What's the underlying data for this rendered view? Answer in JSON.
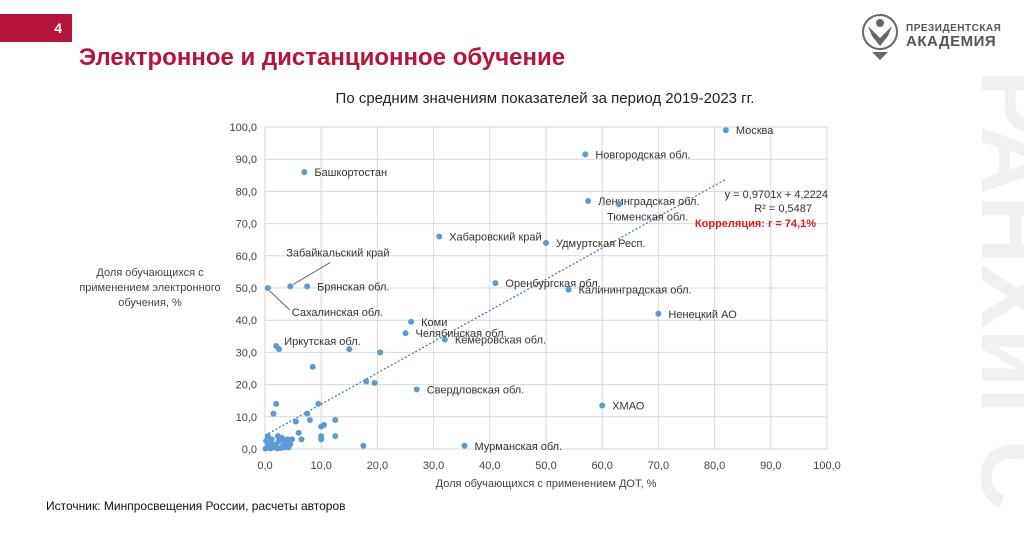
{
  "page_number": "4",
  "title": "Электронное и дистанционное обучение",
  "logo": {
    "line1": "ПРЕЗИДЕНТСКАЯ",
    "line2": "АКАДЕМИЯ"
  },
  "watermark_text": "РАНХиГС",
  "source": "Источник: Минпросвещения России, расчеты авторов",
  "colors": {
    "accent": "#b3163a",
    "point": "#5b9bd5",
    "trend": "#2e75b6",
    "grid": "#d9d9d9"
  },
  "chart_data": {
    "type": "scatter",
    "title": "По средним значениям показателей за период  2019-2023 гг.",
    "xlabel": "Доля обучающихся с применением ДОТ, %",
    "ylabel": [
      "Доля обучающихся с",
      "применением электронного",
      "обучения, %"
    ],
    "xlim": [
      0,
      100
    ],
    "ylim": [
      0,
      100
    ],
    "xticks": [
      "0,0",
      "10,0",
      "20,0",
      "30,0",
      "40,0",
      "50,0",
      "60,0",
      "70,0",
      "80,0",
      "90,0",
      "100,0"
    ],
    "yticks": [
      "0,0",
      "10,0",
      "20,0",
      "30,0",
      "40,0",
      "50,0",
      "60,0",
      "70,0",
      "80,0",
      "90,0",
      "100,0"
    ],
    "grid": true,
    "trendline": {
      "slope": 0.9701,
      "intercept": 4.2224,
      "x_range": [
        0,
        82
      ]
    },
    "equation": "y = 0,9701x + 4,2224",
    "r2": "R² = 0,5487",
    "correlation": "Корреляция: r = 74,1%",
    "labeled_points": [
      {
        "label": "Москва",
        "x": 82,
        "y": 99
      },
      {
        "label": "Новгородская обл.",
        "x": 57,
        "y": 91.5
      },
      {
        "label": "Башкортостан",
        "x": 7,
        "y": 86
      },
      {
        "label": "Ленинградская обл.",
        "x": 57.5,
        "y": 77
      },
      {
        "label": "Тюменская обл.",
        "x": 63,
        "y": 76
      },
      {
        "label": "Хабаровский край",
        "x": 31,
        "y": 66
      },
      {
        "label": "Удмуртская Респ.",
        "x": 50,
        "y": 64
      },
      {
        "label": "Забайкальский край",
        "x": 4.5,
        "y": 50.5
      },
      {
        "label": "Брянская обл.",
        "x": 7.5,
        "y": 50.5
      },
      {
        "label": "Сахалинская обл.",
        "x": 0.5,
        "y": 50
      },
      {
        "label": "Оренбургская обл.",
        "x": 41,
        "y": 51.5
      },
      {
        "label": "Калининградская обл.",
        "x": 54,
        "y": 49.5
      },
      {
        "label": "Ненецкий АО",
        "x": 70,
        "y": 42
      },
      {
        "label": "Коми",
        "x": 26,
        "y": 39.5
      },
      {
        "label": "Челябинская обл.",
        "x": 25,
        "y": 36
      },
      {
        "label": "Кемеровская обл.",
        "x": 32,
        "y": 34
      },
      {
        "label": "Иркутская обл.",
        "x": 2,
        "y": 32
      },
      {
        "label": "Свердловская обл.",
        "x": 27,
        "y": 18.5
      },
      {
        "label": "ХМАО",
        "x": 60,
        "y": 13.5
      },
      {
        "label": "Мурманская обл.",
        "x": 35.5,
        "y": 1
      }
    ],
    "points": [
      [
        2.5,
        31
      ],
      [
        8.5,
        25.5
      ],
      [
        15,
        31
      ],
      [
        20.5,
        30
      ],
      [
        18,
        21
      ],
      [
        19.5,
        20.5
      ],
      [
        9.5,
        14
      ],
      [
        2,
        14
      ],
      [
        1.5,
        11
      ],
      [
        7.5,
        11
      ],
      [
        5.5,
        8.5
      ],
      [
        8,
        9
      ],
      [
        10,
        7
      ],
      [
        12.5,
        9
      ],
      [
        10.5,
        7.5
      ],
      [
        6,
        5
      ],
      [
        10,
        4
      ],
      [
        12.5,
        4
      ],
      [
        6.5,
        3
      ],
      [
        10,
        3
      ],
      [
        17.5,
        1
      ],
      [
        0.3,
        0.3
      ],
      [
        0.5,
        1
      ],
      [
        0.8,
        0.5
      ],
      [
        1,
        2
      ],
      [
        1.2,
        3
      ],
      [
        1.5,
        0.5
      ],
      [
        2,
        1.5
      ],
      [
        2.2,
        0.2
      ],
      [
        2.5,
        2.5
      ],
      [
        3,
        3.5
      ],
      [
        3.2,
        1
      ],
      [
        3.5,
        0.5
      ],
      [
        3.8,
        2
      ],
      [
        4,
        3
      ],
      [
        4.2,
        0.5
      ],
      [
        4.5,
        1.5
      ],
      [
        4.8,
        3
      ],
      [
        0.2,
        2.5
      ],
      [
        0.5,
        4
      ],
      [
        0.8,
        1.5
      ],
      [
        1.8,
        0.8
      ],
      [
        2.8,
        0.3
      ],
      [
        3.3,
        2.8
      ],
      [
        1,
        0.2
      ],
      [
        1.6,
        1.2
      ],
      [
        0.1,
        0.1
      ],
      [
        2.3,
        4
      ],
      [
        4,
        2.2
      ]
    ]
  }
}
